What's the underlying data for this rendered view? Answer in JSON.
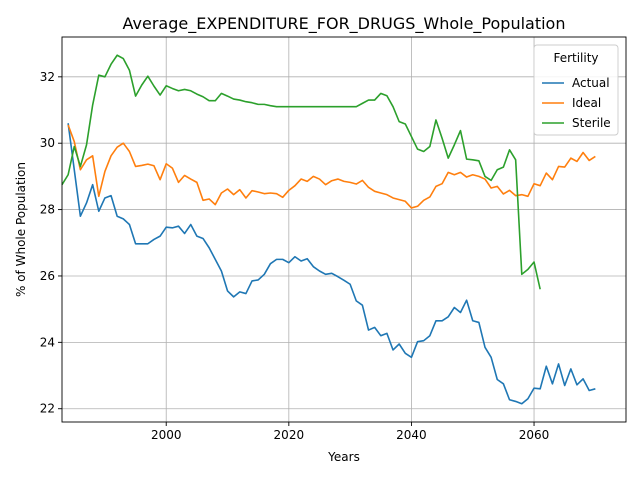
{
  "chart_data": {
    "type": "line",
    "title": "Average_EXPENDITURE_FOR_DRUGS_Whole_Population",
    "xlabel": "Years",
    "ylabel": "% of Whole Population",
    "xlim": [
      1983,
      2075
    ],
    "ylim": [
      21.6,
      33.2
    ],
    "xticks": [
      1980,
      2000,
      2020,
      2040,
      2060
    ],
    "yticks": [
      22,
      24,
      26,
      28,
      30,
      32
    ],
    "grid": true,
    "legend": {
      "title": "Fertility",
      "placement": "top-right"
    },
    "series": [
      {
        "name": "Actual",
        "color": "#1f77b4",
        "x": [
          1984,
          1985,
          1986,
          1987,
          1988,
          1989,
          1990,
          1991,
          1992,
          1993,
          1994,
          1995,
          1996,
          1997,
          1998,
          1999,
          2000,
          2001,
          2002,
          2003,
          2004,
          2005,
          2006,
          2007,
          2008,
          2009,
          2010,
          2011,
          2012,
          2013,
          2014,
          2015,
          2016,
          2017,
          2018,
          2019,
          2020,
          2021,
          2022,
          2023,
          2024,
          2025,
          2026,
          2027,
          2028,
          2029,
          2030,
          2031,
          2032,
          2033,
          2034,
          2035,
          2036,
          2037,
          2038,
          2039,
          2040,
          2041,
          2042,
          2043,
          2044,
          2045,
          2046,
          2047,
          2048,
          2049,
          2050,
          2051,
          2052,
          2053,
          2054,
          2055,
          2056,
          2057,
          2058,
          2059,
          2060,
          2061,
          2062,
          2063,
          2064,
          2065,
          2066,
          2067,
          2068,
          2069,
          2070
        ],
        "y": [
          30.6,
          29.2,
          27.8,
          28.2,
          28.75,
          27.95,
          28.35,
          28.42,
          27.8,
          27.72,
          27.55,
          26.97,
          26.97,
          26.97,
          27.1,
          27.2,
          27.47,
          27.45,
          27.5,
          27.28,
          27.55,
          27.2,
          27.13,
          26.85,
          26.5,
          26.15,
          25.55,
          25.37,
          25.52,
          25.47,
          25.85,
          25.88,
          26.05,
          26.37,
          26.5,
          26.5,
          26.4,
          26.58,
          26.45,
          26.52,
          26.28,
          26.15,
          26.05,
          26.08,
          25.98,
          25.87,
          25.75,
          25.25,
          25.12,
          24.37,
          24.45,
          24.2,
          24.27,
          23.77,
          23.95,
          23.67,
          23.55,
          24.02,
          24.05,
          24.2,
          24.65,
          24.65,
          24.77,
          25.05,
          24.9,
          25.27,
          24.65,
          24.6,
          23.85,
          23.55,
          22.88,
          22.75,
          22.27,
          22.22,
          22.15,
          22.3,
          22.62,
          22.6,
          23.28,
          22.75,
          23.35,
          22.7,
          23.2,
          22.72,
          22.9,
          22.55,
          22.6
        ]
      },
      {
        "name": "Ideal",
        "color": "#ff7f0e",
        "x": [
          1984,
          1985,
          1986,
          1987,
          1988,
          1989,
          1990,
          1991,
          1992,
          1993,
          1994,
          1995,
          1996,
          1997,
          1998,
          1999,
          2000,
          2001,
          2002,
          2003,
          2004,
          2005,
          2006,
          2007,
          2008,
          2009,
          2010,
          2011,
          2012,
          2013,
          2014,
          2015,
          2016,
          2017,
          2018,
          2019,
          2020,
          2021,
          2022,
          2023,
          2024,
          2025,
          2026,
          2027,
          2028,
          2029,
          2030,
          2031,
          2032,
          2033,
          2034,
          2035,
          2036,
          2037,
          2038,
          2039,
          2040,
          2041,
          2042,
          2043,
          2044,
          2045,
          2046,
          2047,
          2048,
          2049,
          2050,
          2051,
          2052,
          2053,
          2054,
          2055,
          2056,
          2057,
          2058,
          2059,
          2060,
          2061,
          2062,
          2063,
          2064,
          2065,
          2066,
          2067,
          2068,
          2069,
          2070
        ],
        "y": [
          30.55,
          30.05,
          29.2,
          29.5,
          29.62,
          28.4,
          29.15,
          29.62,
          29.88,
          30.0,
          29.75,
          29.3,
          29.33,
          29.37,
          29.32,
          28.9,
          29.38,
          29.25,
          28.82,
          29.03,
          28.92,
          28.82,
          28.28,
          28.32,
          28.15,
          28.5,
          28.62,
          28.45,
          28.6,
          28.35,
          28.57,
          28.53,
          28.48,
          28.5,
          28.48,
          28.37,
          28.58,
          28.72,
          28.92,
          28.85,
          29.0,
          28.92,
          28.75,
          28.87,
          28.92,
          28.85,
          28.82,
          28.77,
          28.88,
          28.67,
          28.55,
          28.5,
          28.45,
          28.35,
          28.3,
          28.25,
          28.05,
          28.1,
          28.28,
          28.38,
          28.7,
          28.78,
          29.12,
          29.05,
          29.12,
          28.98,
          29.05,
          29.0,
          28.92,
          28.65,
          28.7,
          28.47,
          28.58,
          28.42,
          28.45,
          28.4,
          28.78,
          28.72,
          29.1,
          28.9,
          29.3,
          29.28,
          29.55,
          29.45,
          29.72,
          29.48,
          29.6
        ]
      },
      {
        "name": "Sterile",
        "color": "#2ca02c",
        "x": [
          1983,
          1984,
          1985,
          1986,
          1987,
          1988,
          1989,
          1990,
          1991,
          1992,
          1993,
          1994,
          1995,
          1996,
          1997,
          1998,
          1999,
          2000,
          2001,
          2002,
          2003,
          2004,
          2005,
          2006,
          2007,
          2008,
          2009,
          2010,
          2011,
          2012,
          2013,
          2014,
          2015,
          2016,
          2017,
          2018,
          2019,
          2020,
          2021,
          2022,
          2023,
          2024,
          2025,
          2026,
          2027,
          2028,
          2029,
          2030,
          2031,
          2032,
          2033,
          2034,
          2035,
          2036,
          2037,
          2038,
          2039,
          2040,
          2041,
          2042,
          2043,
          2044,
          2045,
          2046,
          2047,
          2048,
          2049,
          2050,
          2051,
          2052,
          2053,
          2054,
          2055,
          2056,
          2057,
          2058,
          2059,
          2060,
          2061
        ],
        "y": [
          28.75,
          29.05,
          29.9,
          29.3,
          29.95,
          31.15,
          32.05,
          32.0,
          32.38,
          32.65,
          32.55,
          32.2,
          31.42,
          31.75,
          32.02,
          31.72,
          31.45,
          31.73,
          31.65,
          31.58,
          31.62,
          31.58,
          31.48,
          31.4,
          31.28,
          31.28,
          31.5,
          31.42,
          31.33,
          31.3,
          31.25,
          31.22,
          31.17,
          31.17,
          31.13,
          31.1,
          31.1,
          31.1,
          31.1,
          31.1,
          31.1,
          31.1,
          31.1,
          31.1,
          31.1,
          31.1,
          31.1,
          31.1,
          31.1,
          31.2,
          31.3,
          31.3,
          31.5,
          31.43,
          31.1,
          30.65,
          30.58,
          30.2,
          29.82,
          29.75,
          29.9,
          30.7,
          30.15,
          29.55,
          29.95,
          30.38,
          29.52,
          29.5,
          29.47,
          29.0,
          28.88,
          29.2,
          29.28,
          29.8,
          29.5,
          26.05,
          26.2,
          26.42,
          25.6
        ]
      }
    ]
  }
}
